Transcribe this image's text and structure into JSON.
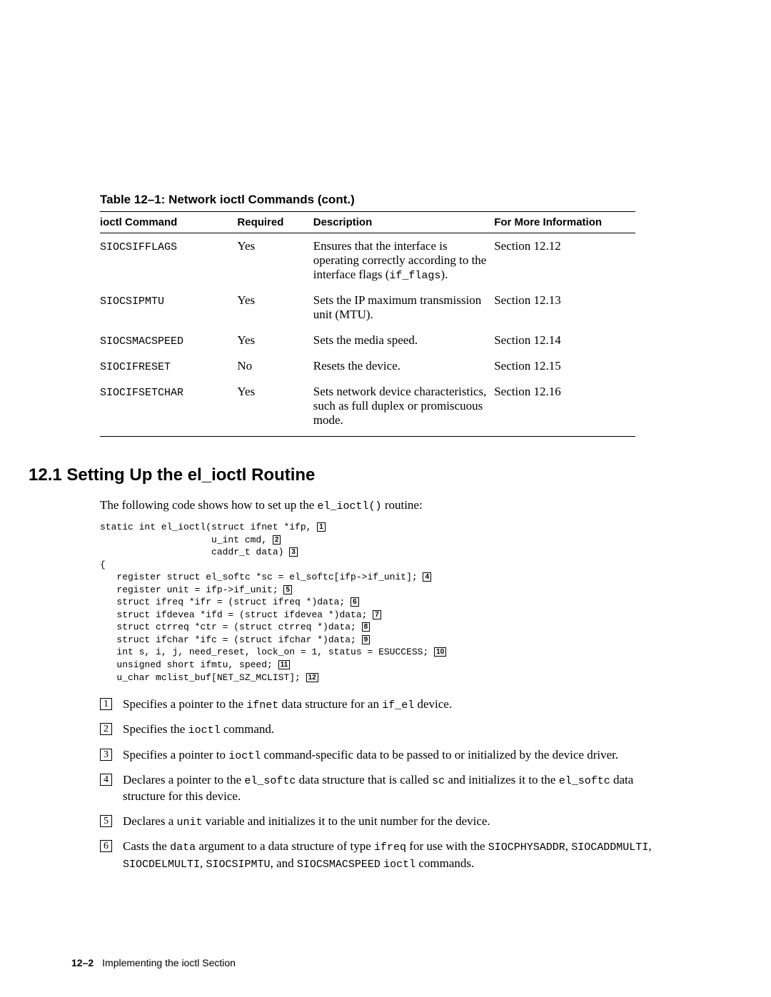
{
  "table_caption": "Table 12–1: Network ioctl Commands (cont.)",
  "table_headers": [
    "ioctl Command",
    "Required",
    "Description",
    "For More Information"
  ],
  "rows": [
    {
      "cmd": "SIOCSIFFLAGS",
      "req": "Yes",
      "desc_pre": "Ensures that the interface is operating correctly according to the interface flags (",
      "desc_code": "if_flags",
      "desc_post": ").",
      "info": "Section 12.12"
    },
    {
      "cmd": "SIOCSIPMTU",
      "req": "Yes",
      "desc_pre": "Sets the IP maximum transmission unit (MTU).",
      "desc_code": "",
      "desc_post": "",
      "info": "Section 12.13"
    },
    {
      "cmd": "SIOCSMACSPEED",
      "req": "Yes",
      "desc_pre": "Sets the media speed.",
      "desc_code": "",
      "desc_post": "",
      "info": "Section 12.14"
    },
    {
      "cmd": "SIOCIFRESET",
      "req": "No",
      "desc_pre": "Resets the device.",
      "desc_code": "",
      "desc_post": "",
      "info": "Section 12.15"
    },
    {
      "cmd": "SIOCIFSETCHAR",
      "req": "Yes",
      "desc_pre": "Sets network device characteristics, such as full duplex or promiscuous mode.",
      "desc_code": "",
      "desc_post": "",
      "info": "Section 12.16"
    }
  ],
  "section_heading": "12.1 Setting Up the el_ioctl Routine",
  "intro_pre": "The following code shows how to set up the ",
  "intro_code": "el_ioctl()",
  "intro_post": " routine:",
  "code": {
    "l1": "static int el_ioctl(struct ifnet *ifp, ",
    "l2": "                    u_int cmd, ",
    "l3": "                    caddr_t data) ",
    "l4": "{",
    "l5": "   register struct el_softc *sc = el_softc[ifp->if_unit]; ",
    "l6": "   register unit = ifp->if_unit; ",
    "l7": "   struct ifreq *ifr = (struct ifreq *)data; ",
    "l8": "   struct ifdevea *ifd = (struct ifdevea *)data; ",
    "l9": "   struct ctrreq *ctr = (struct ctrreq *)data; ",
    "l10": "   struct ifchar *ifc = (struct ifchar *)data; ",
    "l11": "   int s, i, j, need_reset, lock_on = 1, status = ESUCCESS; ",
    "l12": "   unsigned short ifmtu, speed; ",
    "l13": "   u_char mclist_buf[NET_SZ_MCLIST]; "
  },
  "note_nums": {
    "n1": "1",
    "n2": "2",
    "n3": "3",
    "n4": "4",
    "n5": "5",
    "n6": "6",
    "n7": "7",
    "n8": "8",
    "n9": "9",
    "n10": "10",
    "n11": "11",
    "n12": "12"
  },
  "notes": {
    "n1": {
      "num": "1",
      "pre": "Specifies a pointer to the ",
      "c1": "ifnet",
      "mid": " data structure for an ",
      "c2": "if_el",
      "post": " device."
    },
    "n2": {
      "num": "2",
      "pre": "Specifies the ",
      "c1": "ioctl",
      "post": " command."
    },
    "n3": {
      "num": "3",
      "pre": "Specifies a pointer to ",
      "c1": "ioctl",
      "post": " command-specific data to be passed to or initialized by the device driver."
    },
    "n4": {
      "num": "4",
      "pre": "Declares a pointer to the ",
      "c1": "el_softc",
      "mid1": " data structure that is called ",
      "c2": "sc",
      "mid2": " and initializes it to the ",
      "c3": "el_softc",
      "post": " data structure for this device."
    },
    "n5": {
      "num": "5",
      "pre": "Declares a ",
      "c1": "unit",
      "post": " variable and initializes it to the unit number for the device."
    },
    "n6": {
      "num": "6",
      "pre": "Casts the ",
      "c1": "data",
      "mid1": " argument to a data structure of type ",
      "c2": "ifreq",
      "mid2": " for use with the ",
      "c3": "SIOCPHYSADDR",
      "s1": ", ",
      "c4": "SIOCADDMULTI",
      "s2": ", ",
      "c5": "SIOCDELMULTI",
      "s3": ", ",
      "c6": "SIOCSIPMTU",
      "s4": ", and ",
      "c7": "SIOCSMACSPEED",
      "sp": " ",
      "c8": "ioctl",
      "post": " commands."
    }
  },
  "footer_page": "12–2",
  "footer_text": "Implementing the ioctl Section"
}
